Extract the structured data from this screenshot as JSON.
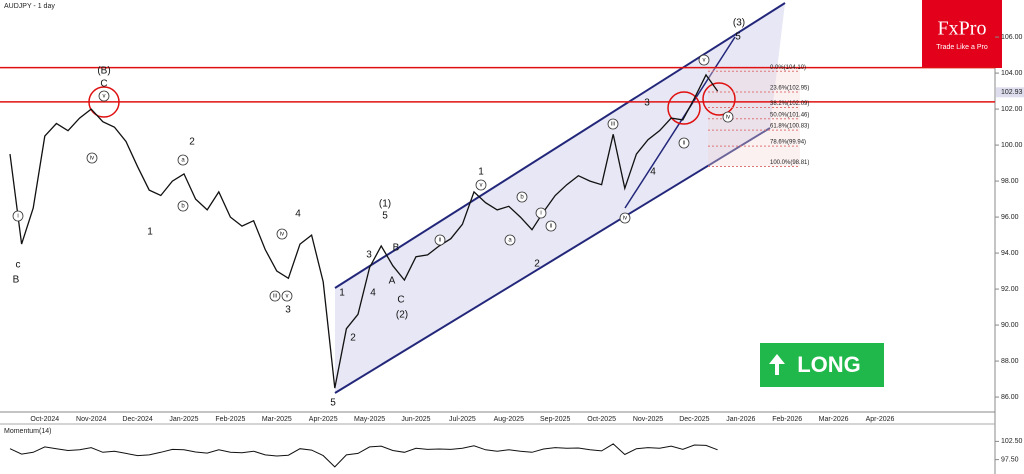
{
  "chart_data": {
    "type": "line",
    "title": "AUDJPY - 1 day",
    "color": "#111111",
    "grid": false,
    "categories": [
      null,
      null,
      null,
      "Oct-2024",
      null,
      null,
      null,
      "Nov-2024",
      null,
      null,
      null,
      "Dec-2024",
      null,
      null,
      null,
      "Jan-2025",
      null,
      null,
      null,
      "Feb-2025",
      null,
      null,
      null,
      "Mar-2025",
      null,
      null,
      null,
      "Apr-2025",
      null,
      null,
      null,
      "May-2025",
      null,
      null,
      null,
      "Jun-2025",
      null,
      null,
      null,
      "Jul-2025",
      null,
      null,
      null,
      "Aug-2025",
      null,
      null,
      null,
      "Sep-2025",
      null,
      null,
      null,
      "Oct-2025",
      null,
      null,
      null,
      "Nov-2025",
      null,
      null,
      null,
      "Dec-2025",
      null,
      null,
      null,
      "Jan-2026",
      null,
      null,
      null,
      "Feb-2026",
      null,
      null,
      null,
      "Mar-2026",
      null,
      null,
      null,
      "Apr-2026",
      null,
      null,
      null,
      null,
      null,
      null,
      null,
      null,
      null
    ],
    "values": [
      99.5,
      94.5,
      96.5,
      100.5,
      101.2,
      100.8,
      101.5,
      102.0,
      101.3,
      101.0,
      100.2,
      98.8,
      97.5,
      97.2,
      98.0,
      98.4,
      97.0,
      96.4,
      97.4,
      96.0,
      95.5,
      95.8,
      94.2,
      93.0,
      92.6,
      94.5,
      95.0,
      92.4,
      86.5,
      89.8,
      90.6,
      93.2,
      94.4,
      93.3,
      92.5,
      93.8,
      93.9,
      94.4,
      94.8,
      95.6,
      97.4,
      96.8,
      96.4,
      96.6,
      96.0,
      95.3,
      96.3,
      97.2,
      97.8,
      98.3,
      98.0,
      97.8,
      100.6,
      97.6,
      99.5,
      100.3,
      100.8,
      101.5,
      101.4,
      102.6,
      103.9,
      103.0,
      null,
      null,
      null,
      null,
      null,
      null,
      null,
      null,
      null,
      null,
      null,
      null,
      null,
      null,
      null,
      null,
      null,
      null,
      null,
      null,
      null,
      null,
      null
    ],
    "ylim": [
      85.17,
      108.06
    ],
    "yticks": [
      {
        "value": 86,
        "label": "86.00"
      },
      {
        "value": 88,
        "label": "88.00"
      },
      {
        "value": 90,
        "label": "90.00"
      },
      {
        "value": 92,
        "label": "92.00"
      },
      {
        "value": 94,
        "label": "94.00"
      },
      {
        "value": 96,
        "label": "96.00"
      },
      {
        "value": 98,
        "label": "98.00"
      },
      {
        "value": 100,
        "label": "100.00"
      },
      {
        "value": 102,
        "label": "102.00"
      },
      {
        "value": 104,
        "label": "104.00"
      },
      {
        "value": 106,
        "label": "106.00"
      }
    ],
    "current_price": 102.93,
    "hlines": [
      104.3,
      102.4
    ],
    "hline_color": "#e01010",
    "fib_levels": [
      {
        "value": 104.1,
        "label": "0.0%(104.10)"
      },
      {
        "value": 102.95,
        "label": "23.6%(102.95)"
      },
      {
        "value": 102.09,
        "label": "38.2%(102.09)"
      },
      {
        "value": 101.46,
        "label": "50.0%(101.46)"
      },
      {
        "value": 100.83,
        "label": "61.8%(100.83)"
      },
      {
        "value": 99.94,
        "label": "78.6%(99.94)"
      },
      {
        "value": 98.81,
        "label": "100.0%(98.81)"
      }
    ],
    "annotations": [
      "(B)",
      "C",
      "B",
      "c",
      "1",
      "2",
      "3",
      "4",
      "5",
      "1",
      "2",
      "3",
      "4",
      "5",
      "(1)",
      "B",
      "A",
      "C",
      "(2)",
      "1",
      "2",
      "3",
      "4",
      "(3)",
      "5",
      "v",
      "iv",
      "i",
      "a",
      "b",
      "iii",
      "v",
      "iv",
      "ii",
      "v",
      "a",
      "b",
      "i",
      "ii",
      "iii",
      "iv",
      "ii",
      "v",
      "iv"
    ],
    "momentum": {
      "label": "Momentum(14)",
      "values": [
        100.5,
        99,
        99.5,
        101,
        100.5,
        100,
        100.2,
        100.8,
        99.5,
        99.8,
        99.2,
        98.6,
        98.8,
        99.5,
        100.3,
        100.2,
        99.6,
        99.3,
        100.2,
        99.5,
        99.4,
        99.8,
        98.8,
        98.5,
        98.7,
        100.5,
        100.1,
        98.6,
        95.5,
        98.8,
        99.2,
        101,
        101.2,
        100,
        99.5,
        100.6,
        100.3,
        100.4,
        100.3,
        100.6,
        101.3,
        100.2,
        99.8,
        100.2,
        99.8,
        99.5,
        100.4,
        100.8,
        100.6,
        100.7,
        100.2,
        99.9,
        101.8,
        98.9,
        100.5,
        100.8,
        100.6,
        101.2,
        100.3,
        101.5,
        101.4,
        100.2,
        null,
        null,
        null,
        null,
        null,
        null,
        null,
        null,
        null,
        null,
        null,
        null,
        null,
        null,
        null,
        null,
        null,
        null,
        null,
        null,
        null,
        null,
        null
      ],
      "ylim": [
        94.1,
        107
      ],
      "yticks": [
        {
          "value": 102.5,
          "label": "102.50"
        },
        {
          "value": 97.5,
          "label": "97.50"
        }
      ]
    },
    "signal": "LONG",
    "logo": {
      "brand": "FxPro",
      "tagline": "Trade Like a Pro"
    }
  }
}
